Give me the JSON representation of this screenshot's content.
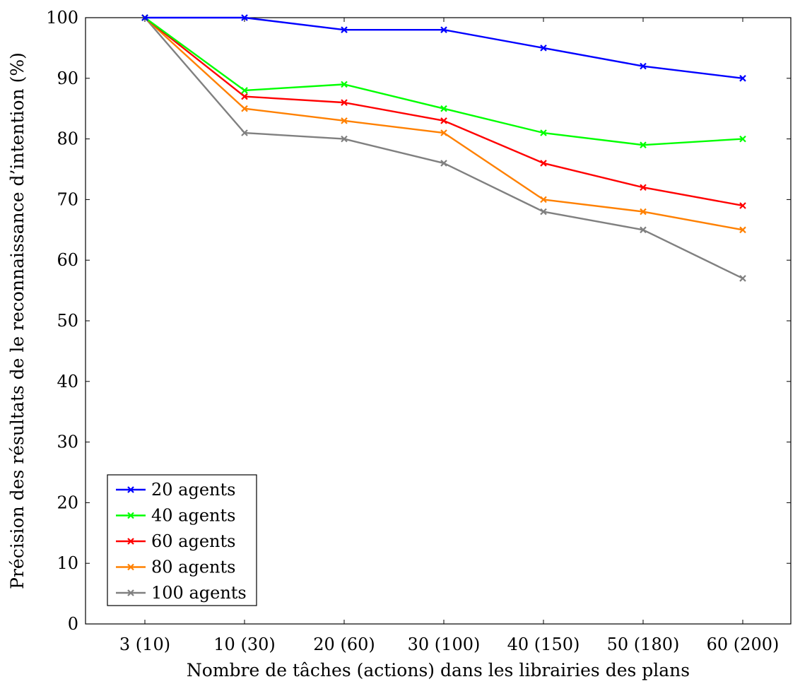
{
  "chart_data": {
    "type": "line",
    "title": "",
    "xlabel": "Nombre de tâches (actions) dans les librairies des plans",
    "ylabel": "Précision des résultats de le reconnaissance d’intention (%)",
    "categories": [
      "3 (10)",
      "10 (30)",
      "20 (60)",
      "30 (100)",
      "40 (150)",
      "50 (180)",
      "60 (200)"
    ],
    "ylim": [
      0,
      100
    ],
    "yticks": [
      0,
      10,
      20,
      30,
      40,
      50,
      60,
      70,
      80,
      90,
      100
    ],
    "grid": false,
    "legend_position": "bottom-left",
    "marker": "x",
    "series": [
      {
        "name": "20 agents",
        "color": "#0000ff",
        "values": [
          100,
          100,
          98,
          98,
          95,
          92,
          90
        ]
      },
      {
        "name": "40 agents",
        "color": "#00ff00",
        "values": [
          100,
          88,
          89,
          85,
          81,
          79,
          80
        ]
      },
      {
        "name": "60 agents",
        "color": "#ff0000",
        "values": [
          100,
          87,
          86,
          83,
          76,
          72,
          69
        ]
      },
      {
        "name": "80 agents",
        "color": "#ff8000",
        "values": [
          100,
          85,
          83,
          81,
          70,
          68,
          65
        ]
      },
      {
        "name": "100 agents",
        "color": "#808080",
        "values": [
          100,
          81,
          80,
          76,
          68,
          65,
          57
        ]
      }
    ]
  }
}
